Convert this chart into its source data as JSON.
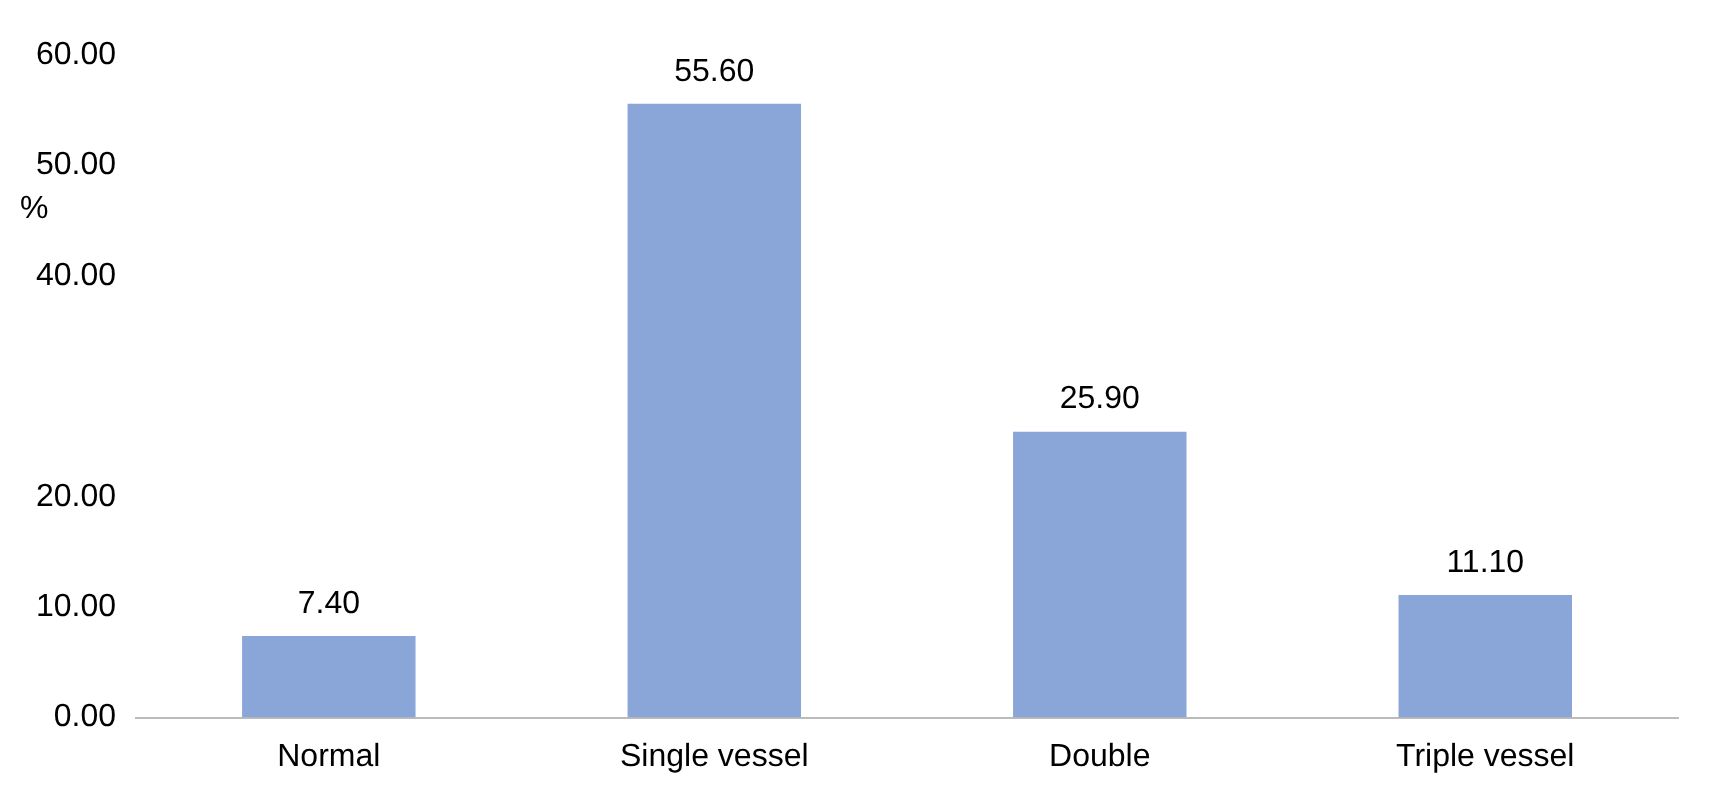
{
  "chart_data": {
    "type": "bar",
    "ylabel": "%",
    "categories": [
      "Normal",
      "Single vessel",
      "Double",
      "Triple vessel"
    ],
    "values": [
      7.4,
      55.6,
      25.9,
      11.1
    ],
    "value_labels": [
      "7.40",
      "55.60",
      "25.90",
      "11.10"
    ],
    "color": "#8aa6d8",
    "ylim": [
      0,
      60
    ],
    "yticks": [
      {
        "value": 0,
        "label": "0.00"
      },
      {
        "value": 10,
        "label": "10.00"
      },
      {
        "value": 20,
        "label": "20.00"
      },
      {
        "value": 40,
        "label": "40.00"
      },
      {
        "value": 50,
        "label": "50.00"
      },
      {
        "value": 60,
        "label": "60.00"
      }
    ],
    "grid": false,
    "legend": false
  }
}
